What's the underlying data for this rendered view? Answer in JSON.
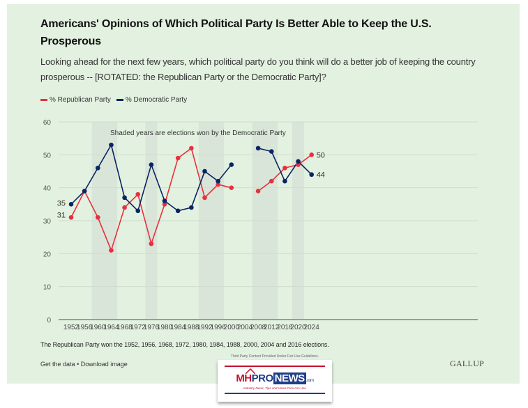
{
  "header": {
    "title": "Americans' Opinions of Which Political Party Is Better Able to Keep the U.S. Prosperous",
    "subtitle": "Looking ahead for the next few years, which political party do you think will do a better job of keeping the country prosperous -- [ROTATED: the Republican Party or the Democratic Party]?"
  },
  "legend": [
    {
      "label": "% Republican Party",
      "color": "#e8303f"
    },
    {
      "label": "% Democratic Party",
      "color": "#0a2463"
    }
  ],
  "chart_data": {
    "type": "line",
    "title": "Americans' Opinions of Which Political Party Is Better Able to Keep the U.S. Prosperous",
    "xlabel": "",
    "ylabel": "",
    "x": [
      1952,
      1956,
      1960,
      1964,
      1968,
      1972,
      1976,
      1980,
      1984,
      1988,
      1992,
      1996,
      2000,
      2004,
      2008,
      2012,
      2016,
      2020,
      2024
    ],
    "series": [
      {
        "name": "% Republican Party",
        "color": "#e8303f",
        "values": [
          31,
          39,
          31,
          21,
          34,
          38,
          23,
          35,
          49,
          52,
          37,
          41,
          40,
          null,
          39,
          42,
          46,
          47,
          50
        ]
      },
      {
        "name": "% Democratic Party",
        "color": "#0a2463",
        "values": [
          35,
          39,
          46,
          53,
          37,
          33,
          47,
          36,
          33,
          34,
          45,
          42,
          47,
          null,
          52,
          51,
          42,
          48,
          44
        ]
      }
    ],
    "ylim": [
      0,
      60
    ],
    "yticks": [
      0,
      10,
      20,
      30,
      40,
      50,
      60
    ],
    "xticks": [
      "1952",
      "1956",
      "1960",
      "1964",
      "1968",
      "1972",
      "1976",
      "1980",
      "1984",
      "1988",
      "1992",
      "1996",
      "2000",
      "2004",
      "2008",
      "2012",
      "2016",
      "2020",
      "2024"
    ],
    "grid": true,
    "legend_position": "top-left",
    "shaded_years": [
      1960,
      1964,
      1976,
      1992,
      1996,
      2008,
      2012,
      2020
    ],
    "annotation": "Shaded years are elections won by the Democratic Party",
    "end_labels": {
      "start": {
        "republican": "31",
        "democratic": "35"
      },
      "end": {
        "republican": "50",
        "democratic": "44"
      }
    }
  },
  "footer": {
    "footnote": "The Republican Party won the 1952, 1956, 1968, 1972, 1980, 1984, 1988, 2000, 2004 and 2016 elections.",
    "get_data": "Get the data",
    "separator": "•",
    "download": "Download image",
    "brand": "GALLUP"
  },
  "watermark": {
    "caption": "Third Party Content Provided Under Fair Use Guidelines.",
    "logo_mh": "MH",
    "logo_pro": "PRO",
    "logo_news": "NEWS",
    "logo_com": ".com",
    "tagline": "Industry News, Tips and Views Pros can Use"
  }
}
